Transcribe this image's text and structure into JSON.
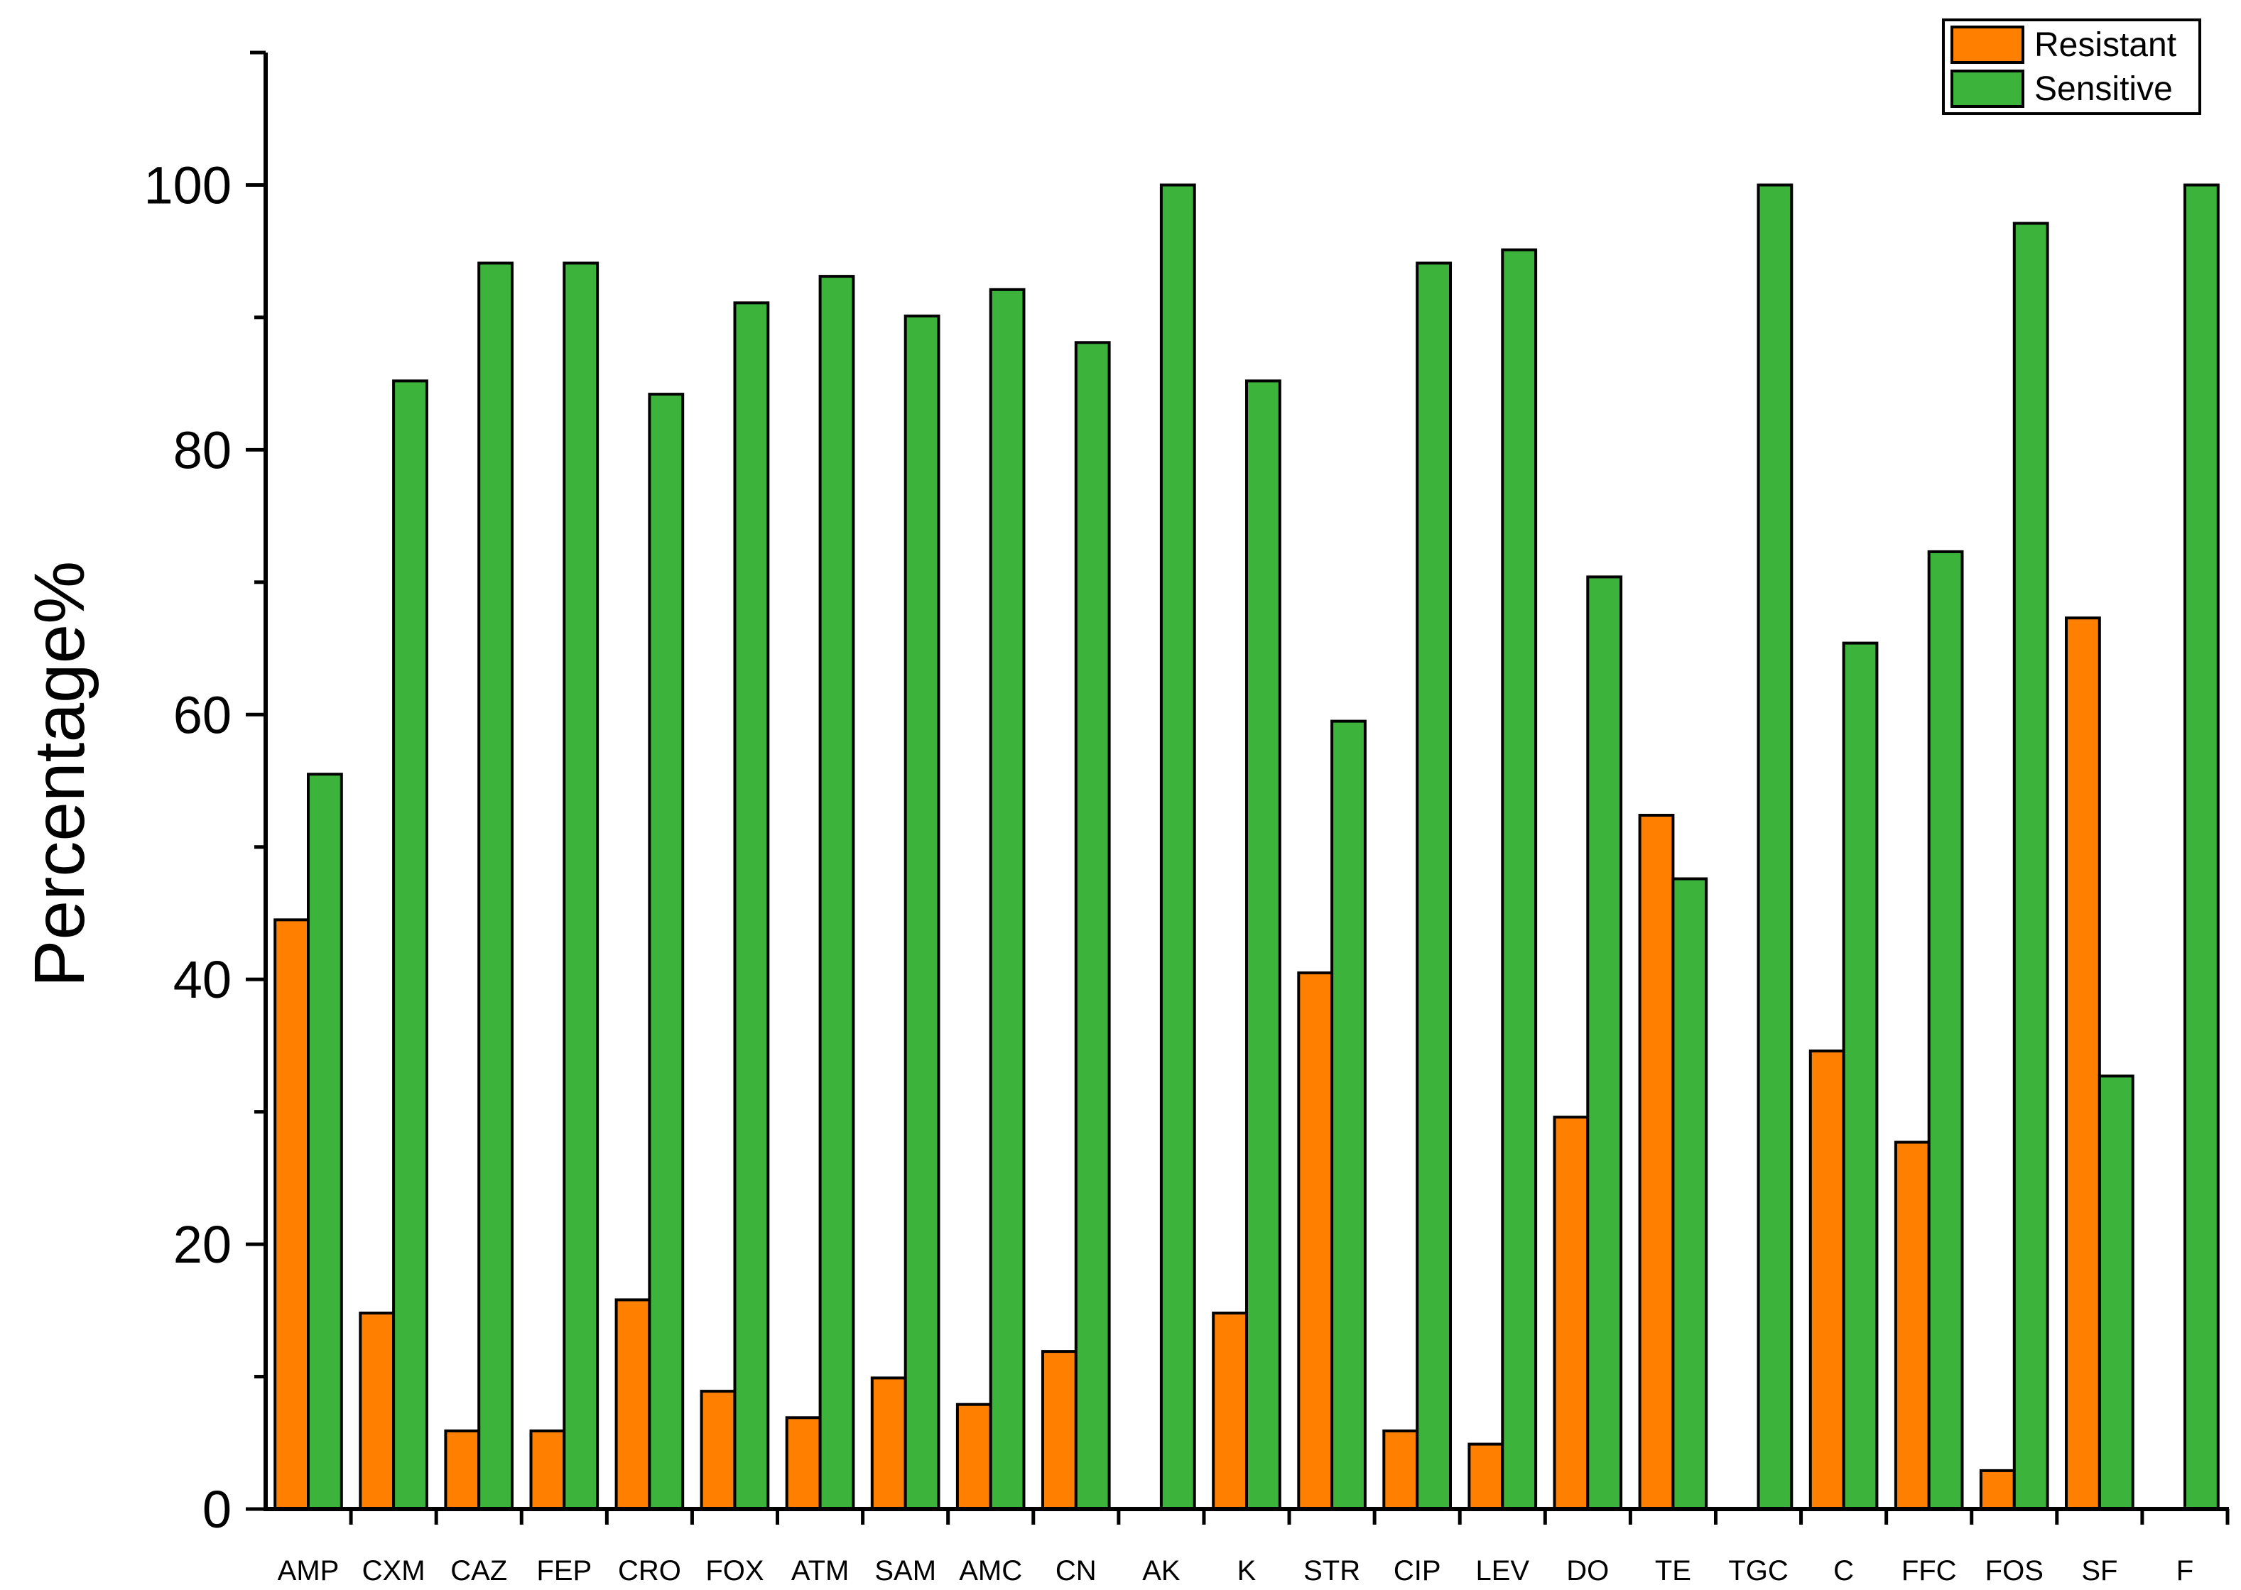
{
  "chart_data": {
    "type": "bar",
    "title": "",
    "xlabel": "",
    "ylabel": "Percentage%",
    "ylim": [
      0,
      110
    ],
    "yticks": [
      0,
      20,
      40,
      60,
      80,
      100
    ],
    "grid": false,
    "legend_position": "top-right",
    "categories": [
      "AMP",
      "CXM",
      "CAZ",
      "FEP",
      "CRO",
      "FOX",
      "ATM",
      "SAM",
      "AMC",
      "CN",
      "AK",
      "K",
      "STR",
      "CIP",
      "LEV",
      "DO",
      "TE",
      "TGC",
      "C",
      "FFC",
      "FOS",
      "SF",
      "F"
    ],
    "series": [
      {
        "name": "Resistant",
        "color": "#FF8000",
        "values": [
          44.5,
          14.8,
          5.9,
          5.9,
          15.8,
          8.9,
          6.9,
          9.9,
          7.9,
          11.9,
          0,
          14.8,
          40.5,
          5.9,
          4.9,
          29.6,
          52.4,
          0,
          34.6,
          27.7,
          2.9,
          67.3,
          0
        ]
      },
      {
        "name": "Sensitive",
        "color": "#3CB43C",
        "values": [
          55.5,
          85.2,
          94.1,
          94.1,
          84.2,
          91.1,
          93.1,
          90.1,
          92.1,
          88.1,
          100,
          85.2,
          59.5,
          94.1,
          95.1,
          70.4,
          47.6,
          100,
          65.4,
          72.3,
          97.1,
          32.7,
          100
        ]
      }
    ]
  }
}
